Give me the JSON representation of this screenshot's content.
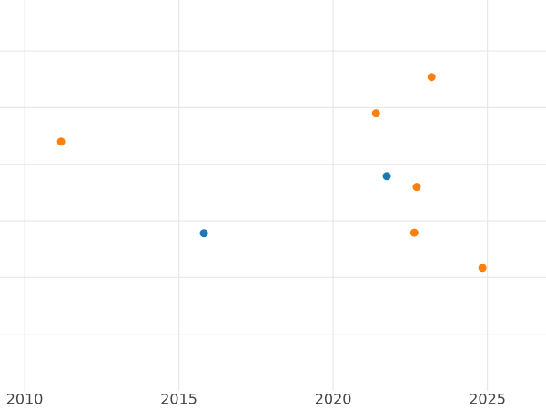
{
  "chart_data": {
    "type": "scatter",
    "xlim": [
      2009.2,
      2026.9
    ],
    "xticks": [
      2010,
      2015,
      2020,
      2025
    ],
    "ylim": [
      0,
      6.9
    ],
    "yticks": [
      1,
      2,
      3,
      4,
      5,
      6
    ],
    "ytick_labels": false,
    "grid": true,
    "series": [
      {
        "color": "#1f77b4",
        "x": [
          2015.81,
          2021.74
        ],
        "values": [
          2.78,
          3.79
        ]
      },
      {
        "color": "#ff7f0e",
        "x": [
          2011.18,
          2021.39,
          2023.19,
          2022.71,
          2022.63,
          2024.84
        ],
        "values": [
          4.4,
          4.9,
          5.54,
          3.6,
          2.79,
          2.17
        ]
      }
    ]
  }
}
